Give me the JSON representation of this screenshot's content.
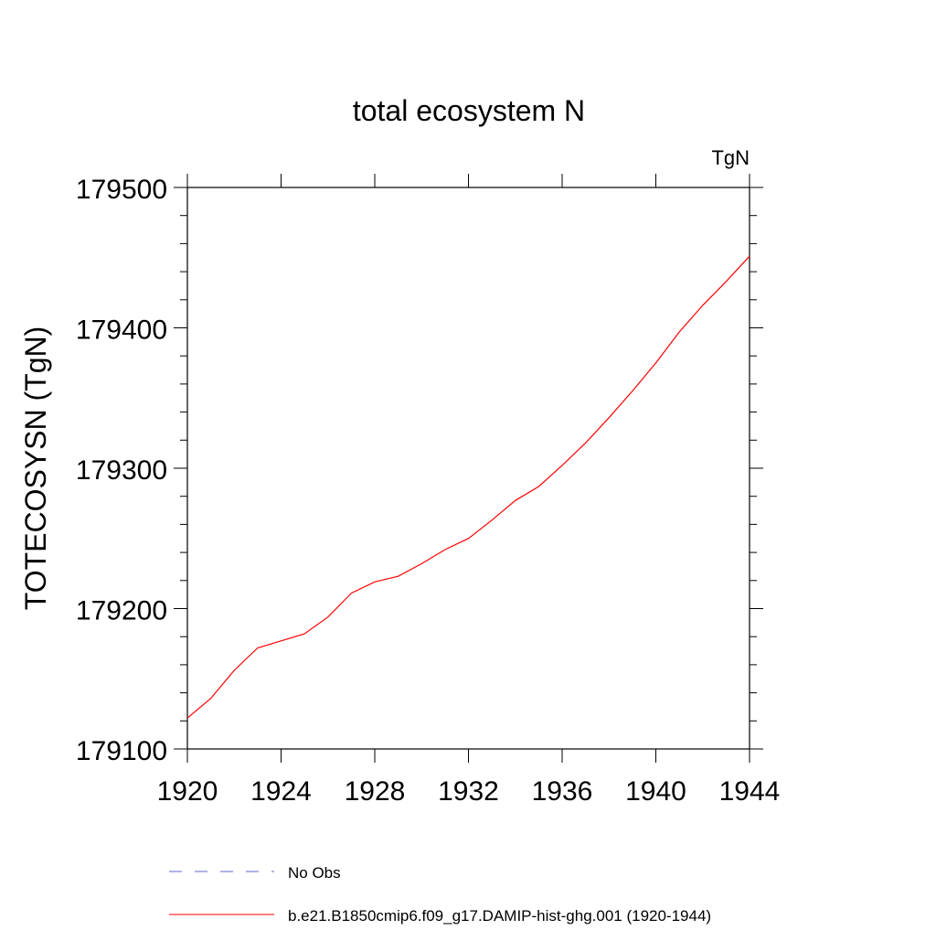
{
  "chart_data": {
    "type": "line",
    "title": "total ecosystem N",
    "units_label": "TgN",
    "xlabel": "",
    "ylabel": "TOTECOSYSN  (TgN)",
    "xlim": [
      1920,
      1944
    ],
    "ylim": [
      179100,
      179500
    ],
    "x_ticks": [
      1920,
      1924,
      1928,
      1932,
      1936,
      1940,
      1944
    ],
    "y_ticks": [
      179100,
      179200,
      179300,
      179400,
      179500
    ],
    "grid": false,
    "legend_position": "bottom",
    "series": [
      {
        "name": "b.e21.B1850cmip6.f09_g17.DAMIP-hist-ghg.001 (1920-1944)",
        "color": "#ff0000",
        "style": "solid",
        "x": [
          1920,
          1921,
          1922,
          1923,
          1924,
          1925,
          1926,
          1927,
          1928,
          1929,
          1930,
          1931,
          1932,
          1933,
          1934,
          1935,
          1936,
          1937,
          1938,
          1939,
          1940,
          1941,
          1942,
          1943,
          1944
        ],
        "values": [
          179122,
          179136,
          179156,
          179172,
          179177,
          179182,
          179194,
          179211,
          179219,
          179223,
          179232,
          179242,
          179250,
          179263,
          179277,
          179287,
          179302,
          179318,
          179336,
          179355,
          179375,
          179397,
          179416,
          179433,
          179451
        ]
      },
      {
        "name": "No Obs",
        "color": "#6666cc",
        "style": "dashed",
        "x": [],
        "values": []
      }
    ]
  }
}
